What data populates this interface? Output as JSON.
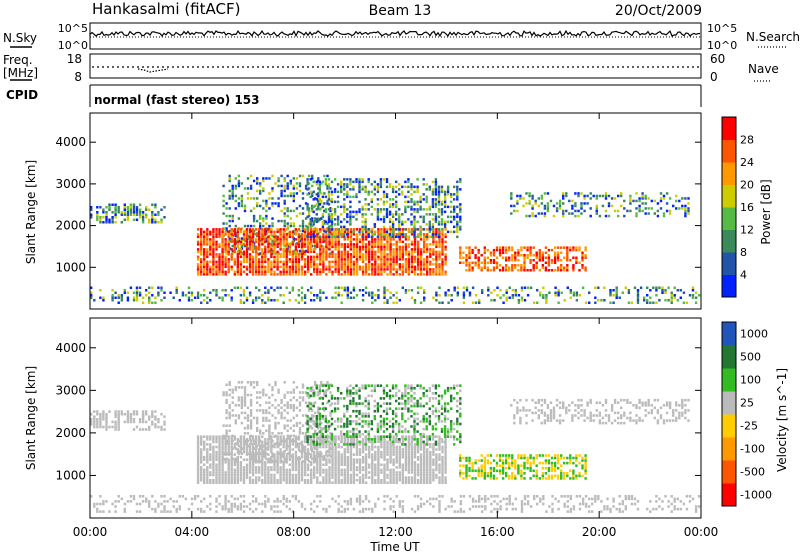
{
  "header": {
    "station": "Hankasalmi (fitACF)",
    "beam": "Beam 13",
    "date": "20/Oct/2009"
  },
  "top_panel": {
    "nsky_label": "N.Sky",
    "nsearch_label": "N.Search",
    "left_ticks": [
      "10^5",
      "10^0"
    ],
    "right_ticks": [
      "10^5",
      "10^0"
    ]
  },
  "freq_panel": {
    "label_line1": "Freq.",
    "label_line2": "[MHz]",
    "nave_label": "Nave",
    "left_ticks": [
      "18",
      "8"
    ],
    "right_ticks": [
      "60",
      "0"
    ]
  },
  "cpid": {
    "label": "CPID",
    "text": "normal (fast stereo) 153"
  },
  "colors": {
    "power": [
      "#0022ff",
      "#2255aa",
      "#3a8a5a",
      "#55bb44",
      "#cccc00",
      "#ff9900",
      "#ff5500",
      "#ff0000"
    ],
    "velocity": [
      "#ff0000",
      "#ff5500",
      "#ff9900",
      "#ffcc00",
      "#bbbbbb",
      "#33bb22",
      "#227733",
      "#2255bb"
    ]
  },
  "chart_data": [
    {
      "type": "heatmap",
      "name": "power",
      "ylabel": "Slant Range [km]",
      "y_ticks": [
        "1000",
        "2000",
        "3000",
        "4000"
      ],
      "ylim": [
        0,
        4700
      ],
      "colorbar_label": "Power [dB]",
      "colorbar_ticks": [
        "4",
        "8",
        "12",
        "16",
        "20",
        "24",
        "28"
      ]
    },
    {
      "type": "heatmap",
      "name": "velocity",
      "ylabel": "Slant Range [km]",
      "y_ticks": [
        "1000",
        "2000",
        "3000",
        "4000"
      ],
      "ylim": [
        0,
        4700
      ],
      "colorbar_label": "Velocity [m s^-1]",
      "colorbar_ticks": [
        "-1000",
        "-500",
        "-100",
        "-25",
        "25",
        "100",
        "500",
        "1000"
      ]
    }
  ],
  "x_axis": {
    "ticks": [
      "00:00",
      "04:00",
      "08:00",
      "12:00",
      "16:00",
      "20:00",
      "00:00"
    ],
    "label": "Time UT"
  }
}
